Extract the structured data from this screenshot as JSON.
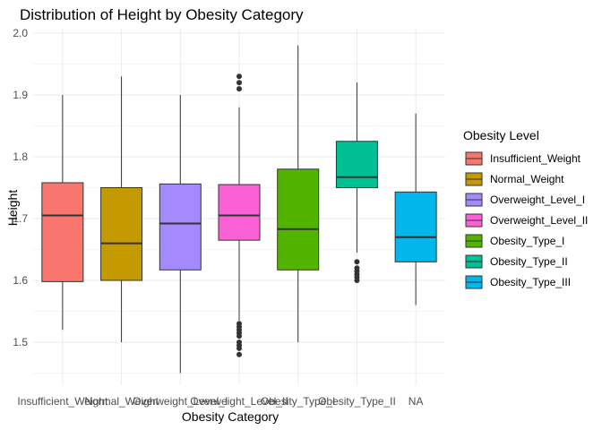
{
  "chart_data": {
    "type": "box",
    "title": "Distribution of Height by Obesity Category",
    "xlabel": "Obesity Category",
    "ylabel": "Height",
    "ylim": [
      1.44,
      2.01
    ],
    "yticks": [
      "1.5",
      "1.6",
      "1.7",
      "1.8",
      "1.9",
      "2.0"
    ],
    "grid": true,
    "legend_title": "Obesity Level",
    "legend_position": "right",
    "x_tick_labels": [
      "Insufficient_Weight",
      "Normal_Weight",
      "Overweight_Level_I",
      "Overweight_Level_II",
      "Obesity_Type_I",
      "Obesity_Type_II",
      "NA"
    ],
    "series": [
      {
        "name": "Insufficient_Weight",
        "color": "#F8766D",
        "min": 1.52,
        "q1": 1.598,
        "median": 1.705,
        "q3": 1.758,
        "max": 1.9,
        "outliers": []
      },
      {
        "name": "Normal_Weight",
        "color": "#C49A00",
        "min": 1.5,
        "q1": 1.6,
        "median": 1.66,
        "q3": 1.75,
        "max": 1.93,
        "outliers": []
      },
      {
        "name": "Overweight_Level_I",
        "color": "#A58AFF",
        "min": 1.45,
        "q1": 1.617,
        "median": 1.692,
        "q3": 1.756,
        "max": 1.9,
        "outliers": []
      },
      {
        "name": "Overweight_Level_II",
        "color": "#FB61D7",
        "min": 1.535,
        "q1": 1.665,
        "median": 1.705,
        "q3": 1.755,
        "max": 1.88,
        "outliers": [
          1.91,
          1.92,
          1.93,
          1.48,
          1.49,
          1.495,
          1.5,
          1.51,
          1.515,
          1.52,
          1.525,
          1.53
        ]
      },
      {
        "name": "Obesity_Type_I",
        "color": "#53B400",
        "min": 1.5,
        "q1": 1.617,
        "median": 1.683,
        "q3": 1.78,
        "max": 1.98,
        "outliers": []
      },
      {
        "name": "Obesity_Type_II",
        "color": "#00C094",
        "min": 1.645,
        "q1": 1.75,
        "median": 1.767,
        "q3": 1.825,
        "max": 1.92,
        "outliers": [
          1.6,
          1.605,
          1.61,
          1.615,
          1.62,
          1.63
        ]
      },
      {
        "name": "Obesity_Type_III",
        "color": "#00B6EB",
        "min": 1.56,
        "q1": 1.63,
        "median": 1.67,
        "q3": 1.743,
        "max": 1.87,
        "outliers": []
      }
    ]
  }
}
